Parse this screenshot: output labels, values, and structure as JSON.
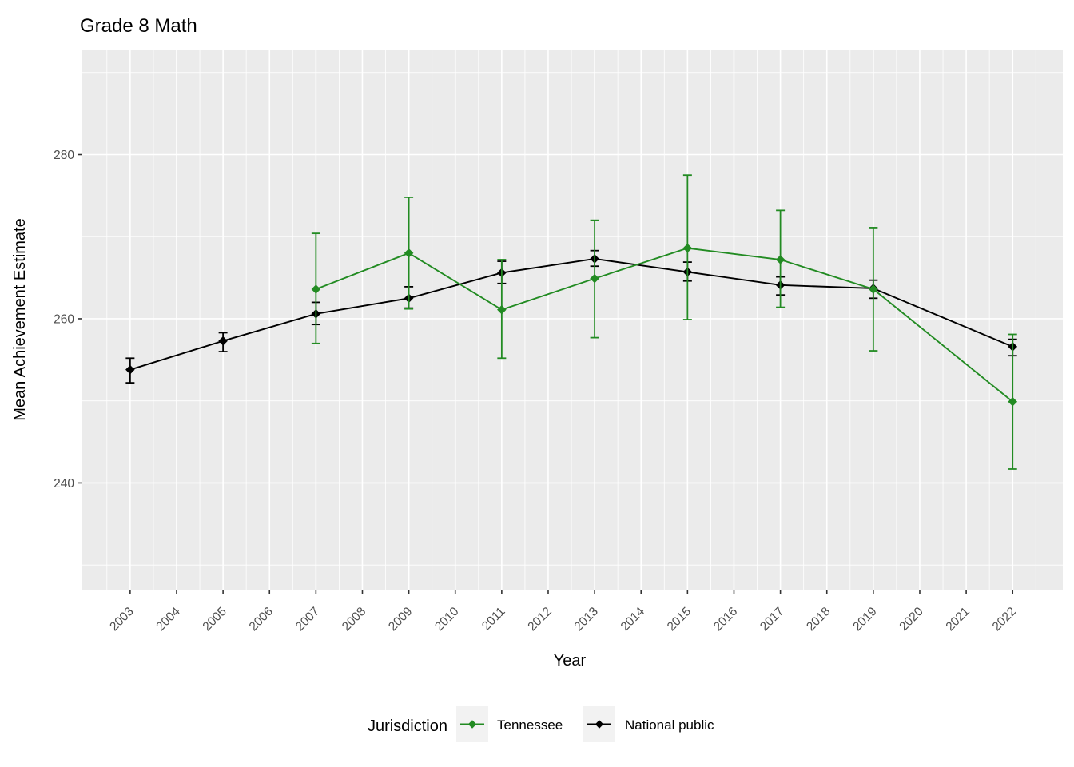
{
  "title": "Grade 8 Math",
  "axes": {
    "x": {
      "label": "Year",
      "ticks": [
        "2003",
        "2004",
        "2005",
        "2006",
        "2007",
        "2008",
        "2009",
        "2010",
        "2011",
        "2012",
        "2013",
        "2014",
        "2015",
        "2016",
        "2017",
        "2018",
        "2019",
        "2020",
        "2021",
        "2022"
      ]
    },
    "y": {
      "label": "Mean Achievement Estimate",
      "ticks": [
        "240",
        "260",
        "280"
      ]
    }
  },
  "legend": {
    "title": "Jurisdiction",
    "entries": [
      {
        "label": "Tennessee",
        "color": "#228B22"
      },
      {
        "label": "National public",
        "color": "#000000"
      }
    ]
  },
  "colors": {
    "panel": "#EBEBEB",
    "grid": "#FFFFFF",
    "axis_text": "#4D4D4D",
    "tick_mark": "#333333",
    "legend_key": "#F2F2F2",
    "tennessee": "#228B22",
    "national_public": "#000000"
  },
  "chart_data": {
    "type": "line",
    "title": "Grade 8 Math",
    "xlabel": "Year",
    "ylabel": "Mean Achievement Estimate",
    "xlim": [
      2001.97,
      2023.08
    ],
    "ylim": [
      227.0,
      292.8
    ],
    "y_major_ticks": [
      240,
      260,
      280
    ],
    "y_minor_ticks": [
      230,
      250,
      270,
      290
    ],
    "grid": true,
    "legend_position": "bottom",
    "error_bars": true,
    "point_shape": "diamond",
    "series": [
      {
        "name": "National public",
        "color": "#000000",
        "x": [
          2003,
          2005,
          2007,
          2009,
          2011,
          2013,
          2015,
          2017,
          2019,
          2022
        ],
        "y": [
          253.8,
          257.3,
          260.6,
          262.5,
          265.6,
          267.3,
          265.7,
          264.1,
          263.7,
          256.6
        ],
        "y_low": [
          252.2,
          256.0,
          259.3,
          261.3,
          264.3,
          266.4,
          264.6,
          262.9,
          262.5,
          255.5
        ],
        "y_high": [
          255.2,
          258.3,
          262.0,
          263.9,
          267.0,
          268.3,
          266.9,
          265.1,
          264.7,
          257.5
        ]
      },
      {
        "name": "Tennessee",
        "color": "#228B22",
        "x": [
          2007,
          2009,
          2011,
          2013,
          2015,
          2017,
          2019,
          2022
        ],
        "y": [
          263.6,
          268.0,
          261.1,
          264.9,
          268.6,
          267.2,
          263.6,
          249.9
        ],
        "y_low": [
          257.0,
          261.2,
          255.2,
          257.7,
          259.9,
          261.4,
          256.1,
          241.7
        ],
        "y_high": [
          270.4,
          274.8,
          267.2,
          272.0,
          277.5,
          273.2,
          271.1,
          258.1
        ]
      }
    ]
  }
}
